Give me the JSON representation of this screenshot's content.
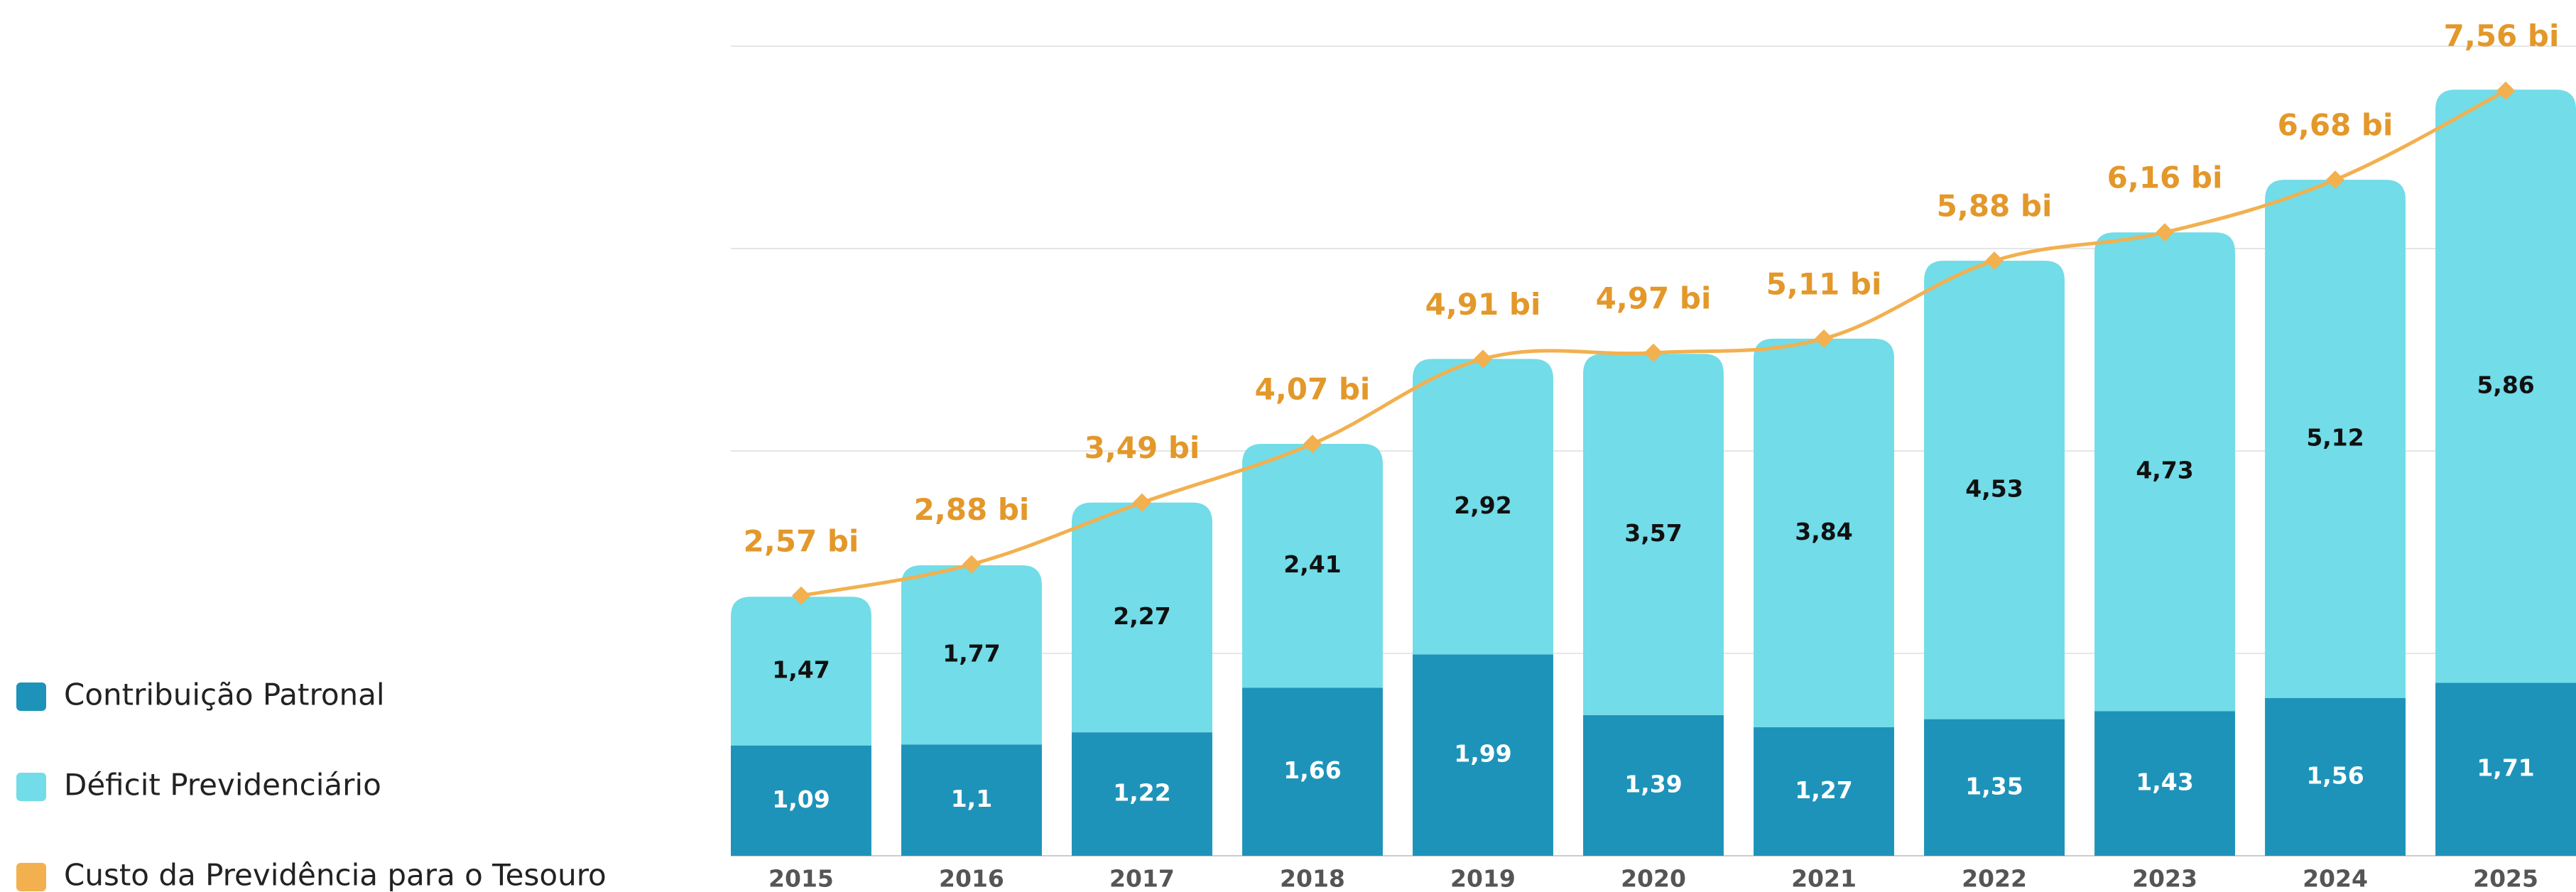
{
  "chart_data": {
    "type": "bar",
    "stacked": true,
    "categories": [
      "2015",
      "2016",
      "2017",
      "2018",
      "2019",
      "2020",
      "2021",
      "2022",
      "2023",
      "2024",
      "2025"
    ],
    "series": [
      {
        "name": "Contribuição Patronal",
        "color": "#1e93b9",
        "values": [
          1.09,
          1.1,
          1.22,
          1.66,
          1.99,
          1.39,
          1.27,
          1.35,
          1.43,
          1.56,
          1.71
        ],
        "value_labels": [
          "1,09",
          "1,1",
          "1,22",
          "1,66",
          "1,99",
          "1,39",
          "1,27",
          "1,35",
          "1,43",
          "1,56",
          "1,71"
        ]
      },
      {
        "name": "Déficit Previdenciário",
        "color": "#72dce8",
        "values": [
          1.47,
          1.77,
          2.27,
          2.41,
          2.92,
          3.57,
          3.84,
          4.53,
          4.73,
          5.12,
          5.86
        ],
        "value_labels": [
          "1,47",
          "1,77",
          "2,27",
          "2,41",
          "2,92",
          "3,57",
          "3,84",
          "4,53",
          "4,73",
          "5,12",
          "5,86"
        ]
      },
      {
        "name": "Custo da Previdência para o Tesouro",
        "type": "line",
        "color": "#f2b04f",
        "values": [
          2.57,
          2.88,
          3.49,
          4.07,
          4.91,
          4.97,
          5.11,
          5.88,
          6.16,
          6.68,
          7.56
        ],
        "value_labels": [
          "2,57 bi",
          "2,88 bi",
          "3,49 bi",
          "4,07 bi",
          "4,91 bi",
          "4,97 bi",
          "5,11 bi",
          "5,88 bi",
          "6,16 bi",
          "6,68 bi",
          "7,56 bi"
        ]
      }
    ],
    "ylim": [
      0,
      8
    ],
    "yticks": [
      0,
      2,
      4,
      6,
      8
    ],
    "grid": true,
    "legend": "left"
  }
}
